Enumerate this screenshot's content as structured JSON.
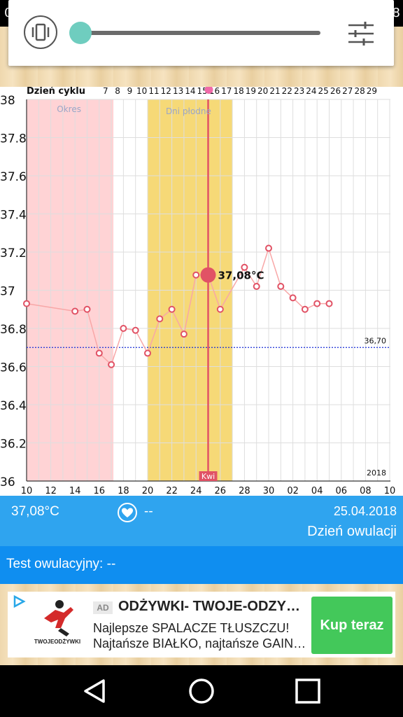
{
  "status_bar": {
    "left_fragment": "0",
    "right_fragment": "8"
  },
  "top_popup": {
    "vibrate_icon": "vibrate-icon",
    "slider_value": 0.0,
    "settings_icon": "tune-sliders-icon"
  },
  "colors": {
    "period": "#ffd3d5",
    "fertile": "#f6d977",
    "line": "#f8a7a7",
    "marker": "#e15265",
    "threshold": "#1a2fd6",
    "info_bar": "#2fa4ef",
    "test_bar": "#0f8ef0",
    "cta": "#43c85a"
  },
  "chart_data": {
    "type": "line",
    "cycle_label": "Dzień cyklu",
    "cycle_days": [
      "7",
      "8",
      "9",
      "10",
      "11",
      "12",
      "13",
      "14",
      "15",
      "16",
      "17",
      "18",
      "19",
      "20",
      "21",
      "22",
      "23",
      "24",
      "25",
      "26",
      "27",
      "28",
      "29"
    ],
    "period_label": "Okres",
    "fertile_label": "Dni płodne",
    "y_ticks": [
      "38",
      "37.8",
      "37.6",
      "37.4",
      "37.2",
      "37",
      "36.8",
      "36.6",
      "36.4",
      "36.2",
      "36"
    ],
    "ylim": [
      36,
      38
    ],
    "x_ticks": [
      "10",
      "12",
      "14",
      "16",
      "18",
      "20",
      "22",
      "24",
      "26",
      "28",
      "30",
      "02",
      "04",
      "06",
      "08",
      "10"
    ],
    "year_label": "2018",
    "month_marker": "Kwi",
    "threshold": {
      "value": 36.7,
      "label": "36,70"
    },
    "selected": {
      "day_index": 15,
      "value": 37.08,
      "label": "37,08°C"
    },
    "x_days": [
      0,
      4,
      5,
      6,
      7,
      8,
      9,
      10,
      11,
      12,
      13,
      14,
      15,
      16,
      18,
      19,
      20,
      21,
      22,
      23,
      24,
      25
    ],
    "values": [
      36.93,
      36.89,
      36.9,
      36.67,
      36.61,
      36.8,
      36.79,
      36.67,
      36.85,
      36.9,
      36.77,
      37.08,
      37.08,
      36.9,
      37.12,
      37.02,
      37.22,
      37.02,
      36.96,
      36.9,
      36.93,
      36.93
    ]
  },
  "info": {
    "temperature": "37,08°C",
    "heart_icon": "heart-icon",
    "heart_value": "--",
    "date": "25.04.2018",
    "day_status": "Dzień owulacji"
  },
  "ovulation_test": {
    "label": "Test owulacyjny: --"
  },
  "ad": {
    "choices_icon": "ad-choices-icon",
    "logo_text": "TWOJEODŻYWKI",
    "badge": "AD",
    "title": "ODŻYWKI- TWOJE-ODZYWKI.PL",
    "line1": "Najlepsze SPALACZE TŁUSZCZU!",
    "line2": "Najtańsze BIAŁKO, najtańsze GAINERY",
    "cta": "Kup teraz"
  },
  "navbar": {
    "back_icon": "back-triangle-icon",
    "home_icon": "home-circle-icon",
    "recents_icon": "recents-square-icon"
  }
}
